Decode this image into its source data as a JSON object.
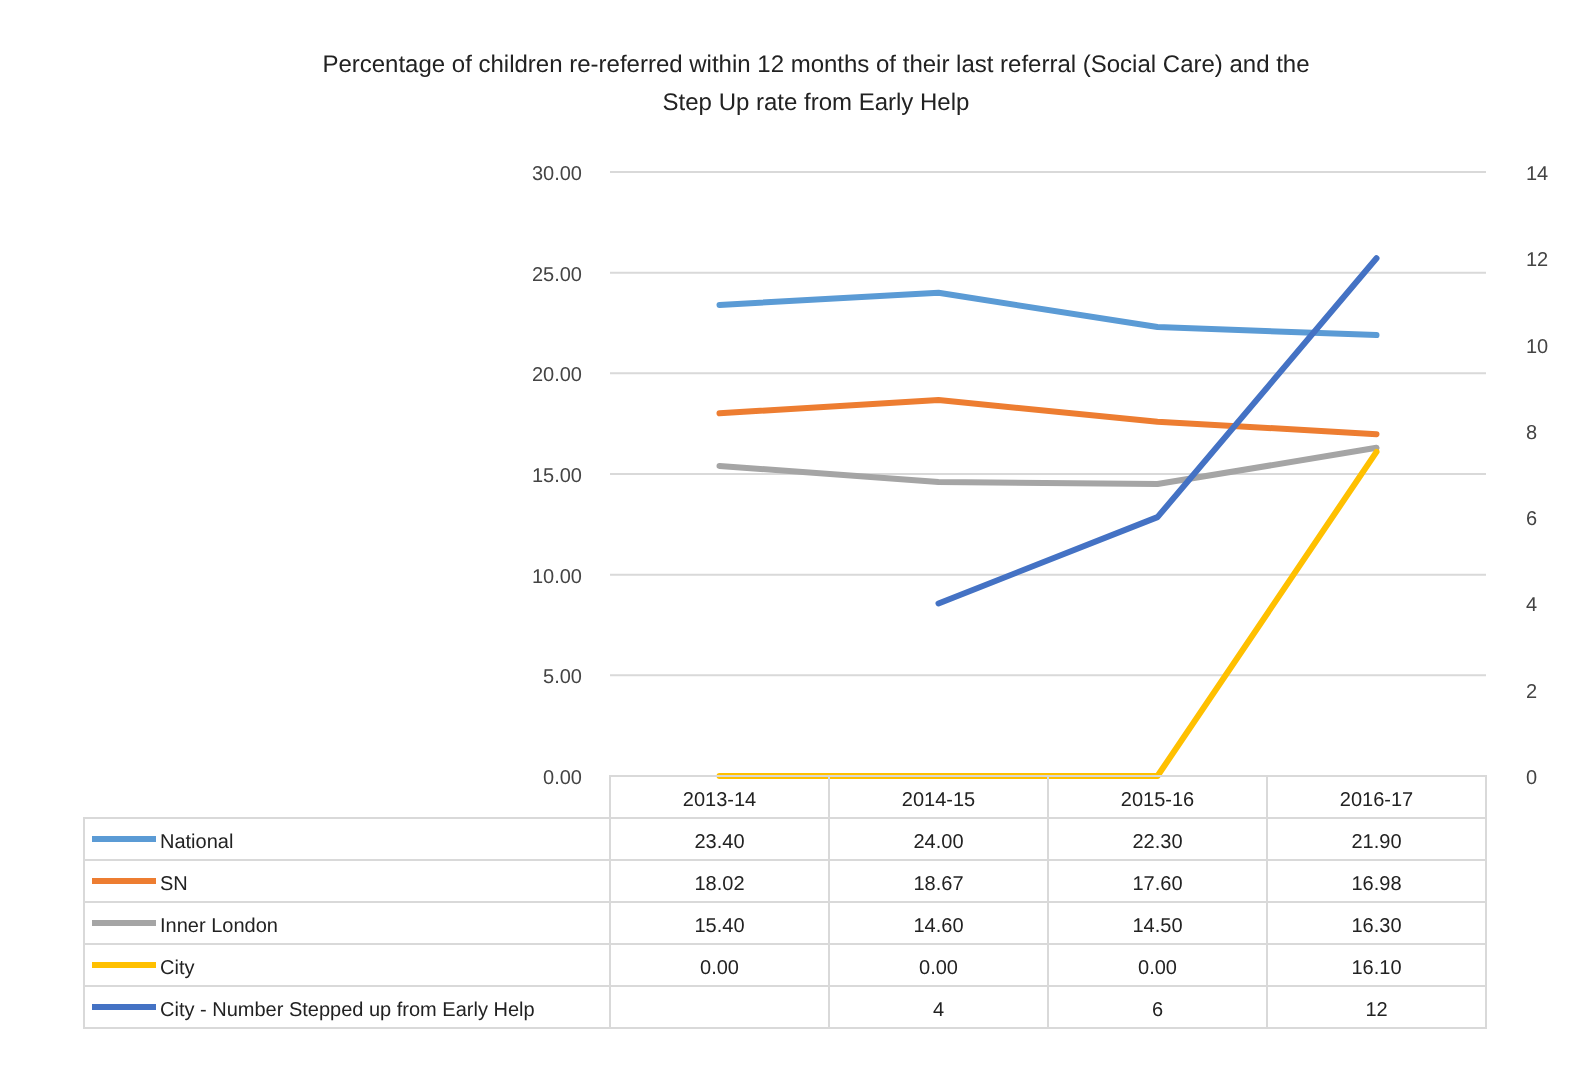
{
  "chart_data": {
    "type": "line",
    "title": "Percentage of children re-referred within 12 months of their last referral (Social Care) and the\nStep Up rate from Early Help",
    "categories": [
      "2013-14",
      "2014-15",
      "2015-16",
      "2016-17"
    ],
    "ylim": [
      0,
      30
    ],
    "yticks": [
      {
        "value": 0,
        "label": "0.00"
      },
      {
        "value": 5,
        "label": "5.00"
      },
      {
        "value": 10,
        "label": "10.00"
      },
      {
        "value": 15,
        "label": "15.00"
      },
      {
        "value": 20,
        "label": "20.00"
      },
      {
        "value": 25,
        "label": "25.00"
      },
      {
        "value": 30,
        "label": "30.00"
      }
    ],
    "y2lim": [
      0,
      14
    ],
    "y2ticks": [
      0,
      2,
      4,
      6,
      8,
      10,
      12,
      14
    ],
    "grid": "y",
    "legend": "bottom",
    "marker": "none",
    "line_style": "solid",
    "series": [
      {
        "name": "National",
        "color": "#5b9bd5",
        "values": [
          23.4,
          24.0,
          22.3,
          21.9
        ],
        "value_labels": [
          "23.40",
          "24.00",
          "22.30",
          "21.90"
        ]
      },
      {
        "name": "SN",
        "color": "#ed7d31",
        "values": [
          18.02,
          18.67,
          17.6,
          16.98
        ],
        "value_labels": [
          "18.02",
          "18.67",
          "17.60",
          "16.98"
        ]
      },
      {
        "name": "Inner London",
        "color": "#a5a5a5",
        "values": [
          15.4,
          14.6,
          14.5,
          16.3
        ],
        "value_labels": [
          "15.40",
          "14.60",
          "14.50",
          "16.30"
        ]
      },
      {
        "name": "City",
        "color": "#ffc000",
        "values": [
          0,
          0,
          0,
          16.1
        ],
        "value_labels": [
          "0.00",
          "0.00",
          "0.00",
          "16.10"
        ]
      },
      {
        "name": "City - Number Stepped up from Early Help",
        "color": "#4472c4",
        "axis": "y2",
        "values": [
          null,
          4,
          6,
          12
        ],
        "value_labels": [
          null,
          "4",
          "6",
          "12"
        ]
      }
    ]
  }
}
